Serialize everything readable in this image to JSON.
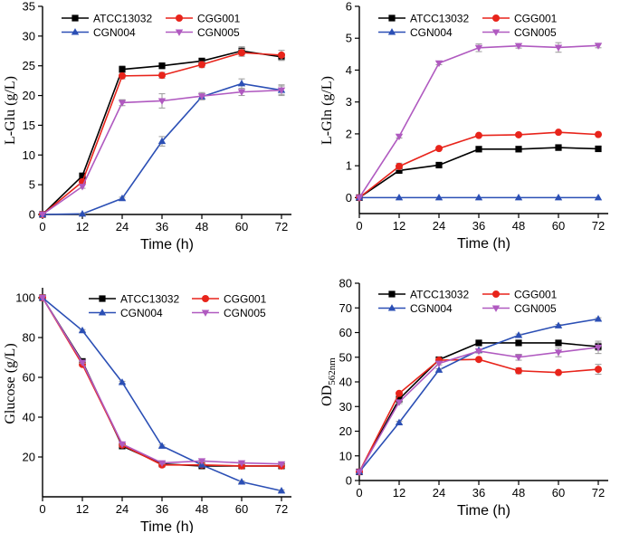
{
  "colors": {
    "ATCC13032": "#000000",
    "CGG001": "#e8241b",
    "CGN004": "#2b4fb5",
    "CGN005": "#b05ac0",
    "error": "#999999"
  },
  "chart_data": [
    {
      "type": "line",
      "id": "lglu",
      "ylabel": "L-Glu (g/L)",
      "ylabel_sub": "",
      "xlabel": "Time (h)",
      "x": [
        0,
        12,
        24,
        36,
        48,
        60,
        72
      ],
      "xticks": [
        "0",
        "12",
        "24",
        "36",
        "48",
        "60",
        "72"
      ],
      "xlim": [
        0,
        75
      ],
      "ylim": [
        0,
        35
      ],
      "yticks": [
        "0",
        "5",
        "10",
        "15",
        "20",
        "25",
        "30",
        "35"
      ],
      "ytick_values": [
        0,
        5,
        10,
        15,
        20,
        25,
        30,
        35
      ],
      "legend_position": "top",
      "series": [
        {
          "name": "ATCC13032",
          "marker": "square",
          "values": [
            0,
            6.5,
            24.4,
            25.0,
            25.8,
            27.5,
            26.5
          ],
          "errors": [
            0,
            0.4,
            0.6,
            0.5,
            0.5,
            0.7,
            0.6
          ]
        },
        {
          "name": "CGG001",
          "marker": "circle",
          "values": [
            0,
            5.5,
            23.3,
            23.4,
            25.2,
            27.2,
            26.8
          ],
          "errors": [
            0,
            0.3,
            0.5,
            0.5,
            0.5,
            0.6,
            0.8
          ]
        },
        {
          "name": "CGN004",
          "marker": "triangle-up",
          "values": [
            0,
            0.1,
            2.7,
            12.3,
            19.8,
            22.0,
            20.9
          ],
          "errors": [
            0,
            0.1,
            0.2,
            0.8,
            0.5,
            0.8,
            0.7
          ]
        },
        {
          "name": "CGN005",
          "marker": "triangle-down",
          "values": [
            0,
            4.7,
            18.8,
            19.1,
            19.9,
            20.6,
            20.9
          ],
          "errors": [
            0,
            0.3,
            0.5,
            1.2,
            0.6,
            0.6,
            0.9
          ]
        }
      ]
    },
    {
      "type": "line",
      "id": "lgln",
      "ylabel": "L-Gln (g/L)",
      "ylabel_sub": "",
      "xlabel": "Time (h)",
      "x": [
        0,
        12,
        24,
        36,
        48,
        60,
        72
      ],
      "xticks": [
        "0",
        "12",
        "24",
        "36",
        "48",
        "60",
        "72"
      ],
      "xlim": [
        0,
        75
      ],
      "ylim": [
        -0.5,
        6
      ],
      "yticks": [
        "0",
        "1",
        "2",
        "3",
        "4",
        "5",
        "6"
      ],
      "ytick_values": [
        0,
        1,
        2,
        3,
        4,
        5,
        6
      ],
      "legend_position": "top",
      "series": [
        {
          "name": "ATCC13032",
          "marker": "square",
          "values": [
            0,
            0.85,
            1.02,
            1.52,
            1.52,
            1.57,
            1.53
          ],
          "errors": [
            0,
            0.05,
            0.04,
            0.07,
            0.09,
            0.09,
            0.07
          ]
        },
        {
          "name": "CGG001",
          "marker": "circle",
          "values": [
            0,
            0.98,
            1.54,
            1.95,
            1.97,
            2.05,
            1.98
          ],
          "errors": [
            0,
            0.1,
            0.04,
            0.04,
            0.04,
            0.04,
            0.04
          ]
        },
        {
          "name": "CGN004",
          "marker": "triangle-up",
          "values": [
            0,
            0,
            0,
            0,
            0,
            0,
            0
          ],
          "errors": [
            0,
            0,
            0,
            0,
            0,
            0,
            0
          ]
        },
        {
          "name": "CGN005",
          "marker": "triangle-down",
          "values": [
            0,
            1.92,
            4.22,
            4.7,
            4.76,
            4.71,
            4.77
          ],
          "errors": [
            0,
            0.05,
            0.05,
            0.12,
            0.07,
            0.15,
            0.07
          ]
        }
      ]
    },
    {
      "type": "line",
      "id": "glucose",
      "ylabel": "Glucose (g/L)",
      "ylabel_sub": "",
      "xlabel": "Time (h)",
      "x": [
        0,
        12,
        24,
        36,
        48,
        60,
        72
      ],
      "xticks": [
        "0",
        "12",
        "24",
        "36",
        "48",
        "60",
        "72"
      ],
      "xlim": [
        0,
        75
      ],
      "ylim": [
        0,
        105
      ],
      "yticks": [
        "20",
        "40",
        "60",
        "80",
        "100"
      ],
      "ytick_values": [
        20,
        40,
        60,
        80,
        100
      ],
      "legend_position": "top",
      "series": [
        {
          "name": "ATCC13032",
          "marker": "square",
          "values": [
            100,
            68,
            25.5,
            16.5,
            15.5,
            15.5,
            15.5
          ],
          "errors": [
            0,
            0.5,
            0.5,
            0.5,
            0.5,
            0.5,
            0.5
          ]
        },
        {
          "name": "CGG001",
          "marker": "circle",
          "values": [
            100,
            66.5,
            26,
            16,
            16,
            15.5,
            15.5
          ],
          "errors": [
            0,
            0.5,
            0.5,
            0.5,
            0.5,
            0.5,
            0.5
          ]
        },
        {
          "name": "CGN004",
          "marker": "triangle-up",
          "values": [
            100,
            83.5,
            57.5,
            25.5,
            16,
            7.5,
            3
          ],
          "errors": [
            0,
            0.5,
            0.5,
            0.5,
            0.5,
            0.5,
            0.5
          ]
        },
        {
          "name": "CGN005",
          "marker": "triangle-down",
          "values": [
            100,
            67.5,
            26.5,
            17,
            18,
            17,
            16.5
          ],
          "errors": [
            0,
            0.5,
            0.5,
            0.5,
            0.5,
            0.5,
            0.5
          ]
        }
      ]
    },
    {
      "type": "line",
      "id": "od",
      "ylabel": "OD",
      "ylabel_sub": "562nm",
      "xlabel": "Time (h)",
      "x": [
        0,
        12,
        24,
        36,
        48,
        60,
        72
      ],
      "xticks": [
        "0",
        "12",
        "24",
        "36",
        "48",
        "60",
        "72"
      ],
      "xlim": [
        0,
        75
      ],
      "ylim": [
        0,
        80
      ],
      "yticks": [
        "0",
        "10",
        "20",
        "30",
        "40",
        "50",
        "60",
        "70",
        "80"
      ],
      "ytick_values": [
        0,
        10,
        20,
        30,
        40,
        50,
        60,
        70,
        80
      ],
      "legend_position": "top",
      "series": [
        {
          "name": "ATCC13032",
          "marker": "square",
          "values": [
            3.5,
            33,
            49,
            55.8,
            55.8,
            55.8,
            54.3
          ],
          "errors": [
            0,
            0.6,
            0.6,
            0.6,
            0.6,
            0.6,
            1.5
          ]
        },
        {
          "name": "CGG001",
          "marker": "circle",
          "values": [
            3.5,
            35.3,
            48.8,
            49.1,
            44.5,
            43.8,
            45.1
          ],
          "errors": [
            0,
            0.6,
            0.6,
            0.6,
            1.2,
            0.6,
            2.0
          ]
        },
        {
          "name": "CGN004",
          "marker": "triangle-up",
          "values": [
            3.5,
            23.5,
            44.8,
            52.8,
            58.9,
            62.8,
            65.5
          ],
          "errors": [
            0,
            0.5,
            0.5,
            0.5,
            0.5,
            0.5,
            0.5
          ]
        },
        {
          "name": "CGN005",
          "marker": "triangle-down",
          "values": [
            3.5,
            31.8,
            47.5,
            52.5,
            50,
            52,
            54
          ],
          "errors": [
            0,
            0.6,
            0.6,
            0.8,
            1.2,
            1.8,
            2.5
          ]
        }
      ]
    }
  ]
}
